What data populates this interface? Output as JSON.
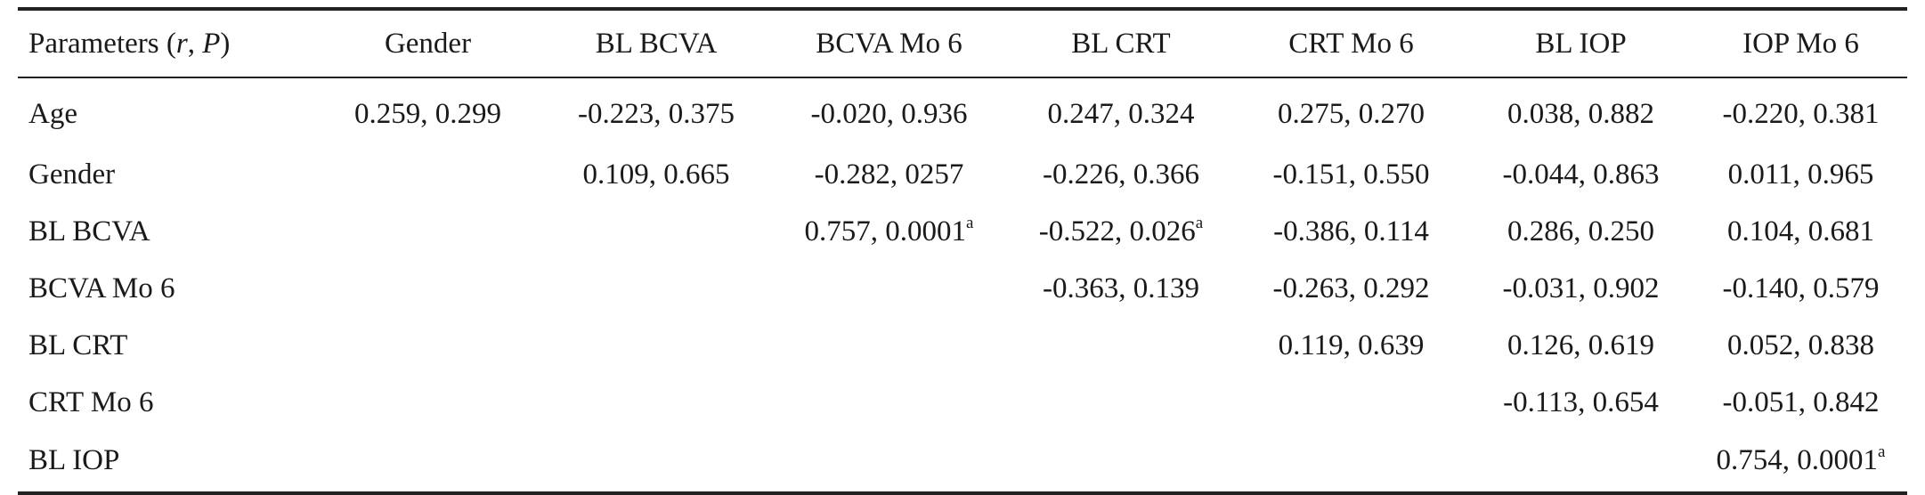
{
  "table": {
    "header": {
      "first": {
        "prefix": "Parameters (",
        "r": "r",
        "sep": ", ",
        "p": "P",
        "suffix": ")"
      },
      "columns": [
        "Gender",
        "BL BCVA",
        "BCVA Mo 6",
        "BL CRT",
        "CRT Mo 6",
        "BL IOP",
        "IOP Mo 6"
      ]
    },
    "rows": [
      {
        "label": "Age",
        "cells": [
          {
            "v": "0.259, 0.299",
            "sup": ""
          },
          {
            "v": "-0.223, 0.375",
            "sup": ""
          },
          {
            "v": "-0.020, 0.936",
            "sup": ""
          },
          {
            "v": "0.247, 0.324",
            "sup": ""
          },
          {
            "v": "0.275, 0.270",
            "sup": ""
          },
          {
            "v": "0.038, 0.882",
            "sup": ""
          },
          {
            "v": "-0.220, 0.381",
            "sup": ""
          }
        ]
      },
      {
        "label": "Gender",
        "cells": [
          {
            "v": "",
            "sup": ""
          },
          {
            "v": "0.109, 0.665",
            "sup": ""
          },
          {
            "v": "-0.282, 0257",
            "sup": ""
          },
          {
            "v": "-0.226, 0.366",
            "sup": ""
          },
          {
            "v": "-0.151, 0.550",
            "sup": ""
          },
          {
            "v": "-0.044, 0.863",
            "sup": ""
          },
          {
            "v": "0.011, 0.965",
            "sup": ""
          }
        ]
      },
      {
        "label": "BL BCVA",
        "cells": [
          {
            "v": "",
            "sup": ""
          },
          {
            "v": "",
            "sup": ""
          },
          {
            "v": "0.757, 0.0001",
            "sup": "a"
          },
          {
            "v": "-0.522, 0.026",
            "sup": "a"
          },
          {
            "v": "-0.386, 0.114",
            "sup": ""
          },
          {
            "v": "0.286, 0.250",
            "sup": ""
          },
          {
            "v": "0.104, 0.681",
            "sup": ""
          }
        ]
      },
      {
        "label": "BCVA Mo 6",
        "cells": [
          {
            "v": "",
            "sup": ""
          },
          {
            "v": "",
            "sup": ""
          },
          {
            "v": "",
            "sup": ""
          },
          {
            "v": "-0.363, 0.139",
            "sup": ""
          },
          {
            "v": "-0.263, 0.292",
            "sup": ""
          },
          {
            "v": "-0.031, 0.902",
            "sup": ""
          },
          {
            "v": "-0.140, 0.579",
            "sup": ""
          }
        ]
      },
      {
        "label": "BL CRT",
        "cells": [
          {
            "v": "",
            "sup": ""
          },
          {
            "v": "",
            "sup": ""
          },
          {
            "v": "",
            "sup": ""
          },
          {
            "v": "",
            "sup": ""
          },
          {
            "v": "0.119, 0.639",
            "sup": ""
          },
          {
            "v": "0.126, 0.619",
            "sup": ""
          },
          {
            "v": "0.052, 0.838",
            "sup": ""
          }
        ]
      },
      {
        "label": "CRT Mo 6",
        "cells": [
          {
            "v": "",
            "sup": ""
          },
          {
            "v": "",
            "sup": ""
          },
          {
            "v": "",
            "sup": ""
          },
          {
            "v": "",
            "sup": ""
          },
          {
            "v": "",
            "sup": ""
          },
          {
            "v": "-0.113, 0.654",
            "sup": ""
          },
          {
            "v": "-0.051, 0.842",
            "sup": ""
          }
        ]
      },
      {
        "label": "BL IOP",
        "cells": [
          {
            "v": "",
            "sup": ""
          },
          {
            "v": "",
            "sup": ""
          },
          {
            "v": "",
            "sup": ""
          },
          {
            "v": "",
            "sup": ""
          },
          {
            "v": "",
            "sup": ""
          },
          {
            "v": "",
            "sup": ""
          },
          {
            "v": "0.754, 0.0001",
            "sup": "a"
          }
        ]
      }
    ]
  }
}
